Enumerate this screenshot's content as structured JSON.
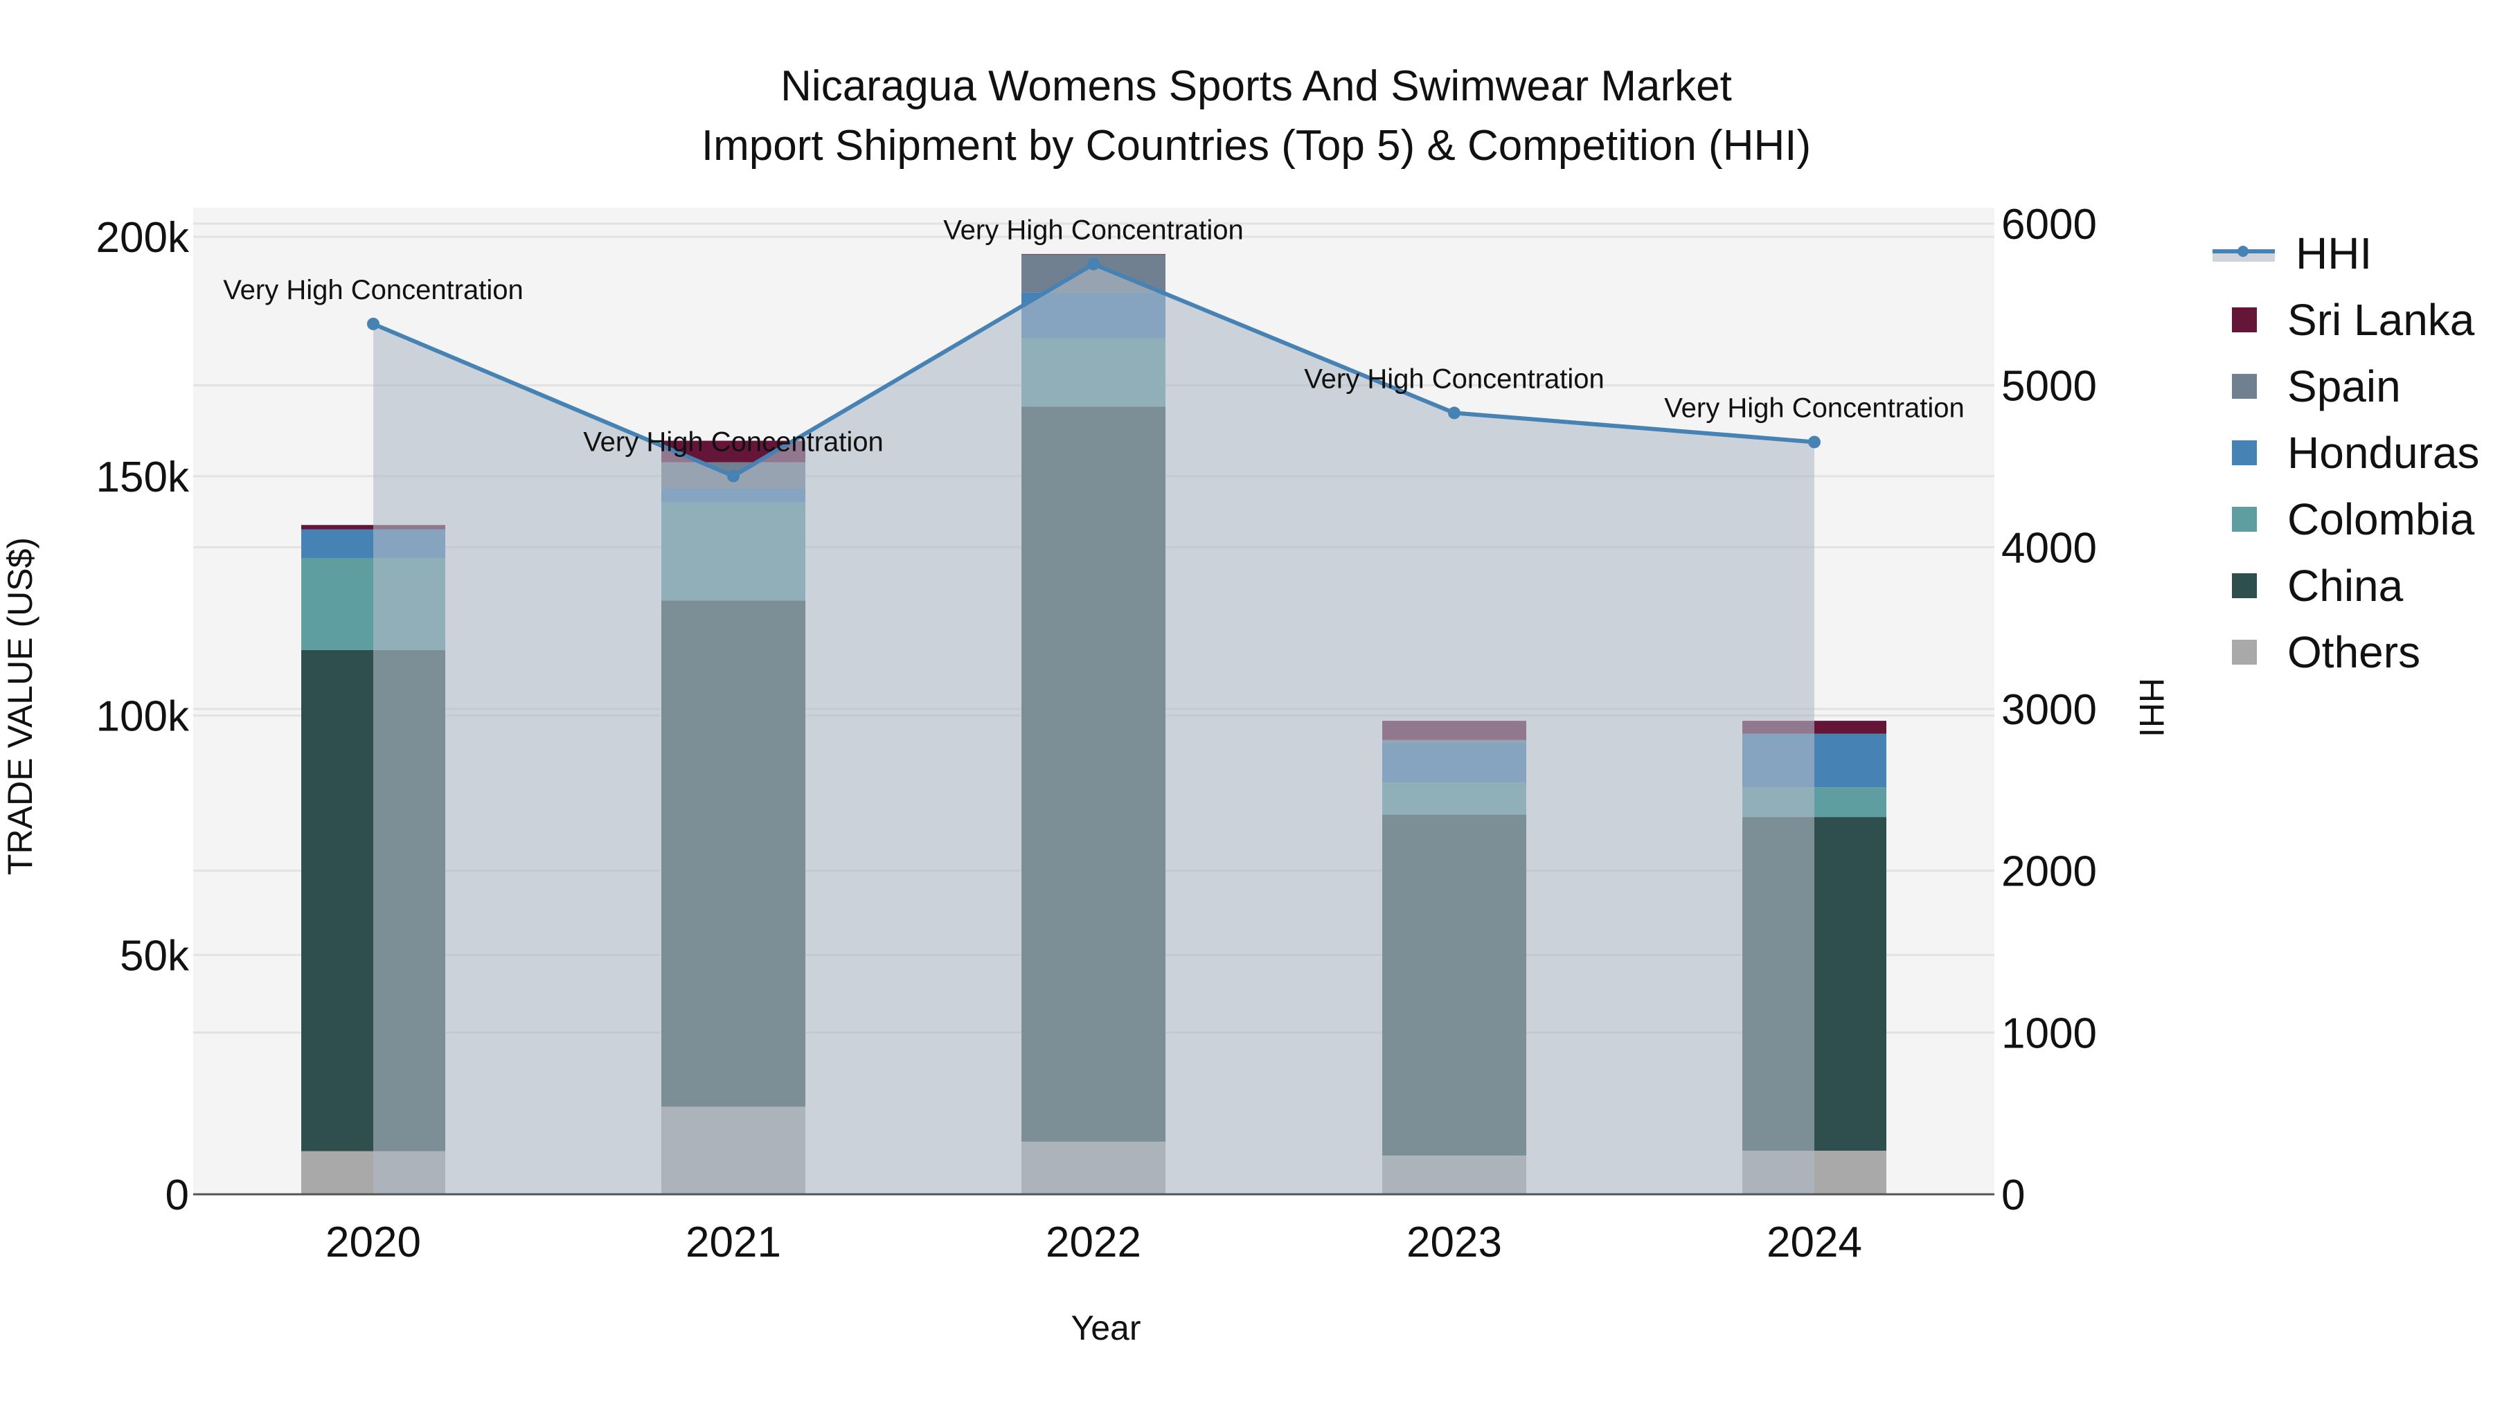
{
  "title": {
    "line1": "Nicaragua Womens Sports And Swimwear Market",
    "line2": "Import Shipment by Countries (Top 5) & Competition (HHI)"
  },
  "axes": {
    "xlabel": "Year",
    "ylabel_left": "TRADE VALUE (US$)",
    "ylabel_right": "HHI",
    "left_ticks": [
      "0",
      "50k",
      "100k",
      "150k",
      "200k"
    ],
    "right_ticks": [
      "0",
      "1000",
      "2000",
      "3000",
      "4000",
      "5000",
      "6000"
    ],
    "x_ticks": [
      "2020",
      "2021",
      "2022",
      "2023",
      "2024"
    ]
  },
  "legend": [
    {
      "label": "HHI",
      "type": "line",
      "color": "#4682b4"
    },
    {
      "label": "Sri Lanka",
      "type": "bar",
      "color": "#641538"
    },
    {
      "label": "Spain",
      "type": "bar",
      "color": "#708090"
    },
    {
      "label": "Honduras",
      "type": "bar",
      "color": "#4682b4"
    },
    {
      "label": "Colombia",
      "type": "bar",
      "color": "#5f9ea0"
    },
    {
      "label": "China",
      "type": "bar",
      "color": "#2f4f4f"
    },
    {
      "label": "Others",
      "type": "bar",
      "color": "#a9a9a9"
    }
  ],
  "chart_data": {
    "type": "bar",
    "stacked": true,
    "title": "Nicaragua Womens Sports And Swimwear Market Import Shipment by Countries (Top 5) & Competition (HHI)",
    "xlabel": "Year",
    "ylabel": "TRADE VALUE (US$)",
    "y2label": "HHI",
    "categories": [
      "2020",
      "2021",
      "2022",
      "2023",
      "2024"
    ],
    "ylim": [
      0,
      205000
    ],
    "y2lim": [
      0,
      6150
    ],
    "grid": true,
    "legend_position": "right",
    "series": [
      {
        "name": "Others",
        "color": "#a9a9a9",
        "values": [
          9000,
          18300,
          11000,
          8100,
          9100
        ]
      },
      {
        "name": "China",
        "color": "#2f4f4f",
        "values": [
          104700,
          105700,
          153500,
          71200,
          69700
        ]
      },
      {
        "name": "Colombia",
        "color": "#5f9ea0",
        "values": [
          19200,
          20500,
          14300,
          6700,
          6200
        ]
      },
      {
        "name": "Honduras",
        "color": "#4682b4",
        "values": [
          6000,
          3000,
          9600,
          8400,
          11200
        ]
      },
      {
        "name": "Spain",
        "color": "#708090",
        "values": [
          0,
          5400,
          7900,
          500,
          0
        ]
      },
      {
        "name": "Sri Lanka",
        "color": "#641538",
        "values": [
          900,
          4500,
          100,
          4000,
          2700
        ]
      }
    ],
    "line_series": {
      "name": "HHI",
      "axis": "right",
      "color": "#4682b4",
      "values": [
        5380,
        4440,
        5750,
        4830,
        4650
      ],
      "annotations": [
        "Very High Concentration",
        "Very High Concentration",
        "Very High Concentration",
        "Very High Concentration",
        "Very High Concentration"
      ]
    }
  }
}
